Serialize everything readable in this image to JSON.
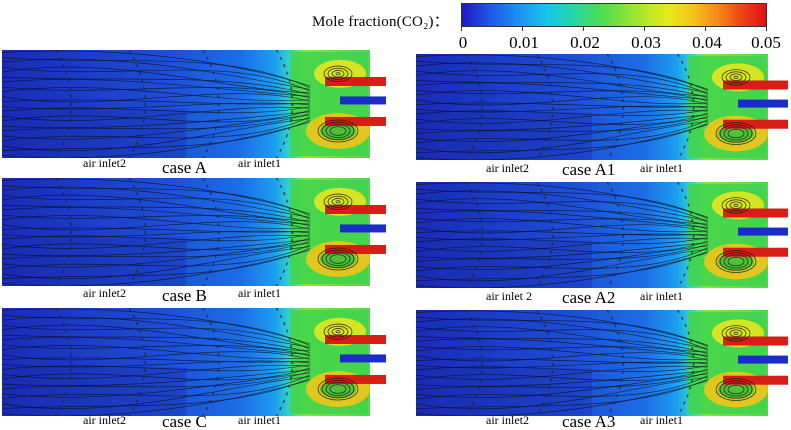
{
  "colorbar": {
    "title": "Mole fraction(CO₂)：",
    "ticks": [
      "0",
      "0.01",
      "0.02",
      "0.03",
      "0.04",
      "0.05"
    ]
  },
  "panels": [
    {
      "case": "case A",
      "inlet2": "air inlet2",
      "inlet1": "air inlet1"
    },
    {
      "case": "case B",
      "inlet2": "air inlet2",
      "inlet1": "air inlet1"
    },
    {
      "case": "case C",
      "inlet2": "air inlet2",
      "inlet1": "air inlet1"
    },
    {
      "case": "case A1",
      "inlet2": "air inlet2",
      "inlet1": "air inlet1"
    },
    {
      "case": "case A2",
      "inlet2": "air inlet 2",
      "inlet1": "air inlet1"
    },
    {
      "case": "case A3",
      "inlet2": "air inlet2",
      "inlet1": "air inlet1"
    }
  ]
}
